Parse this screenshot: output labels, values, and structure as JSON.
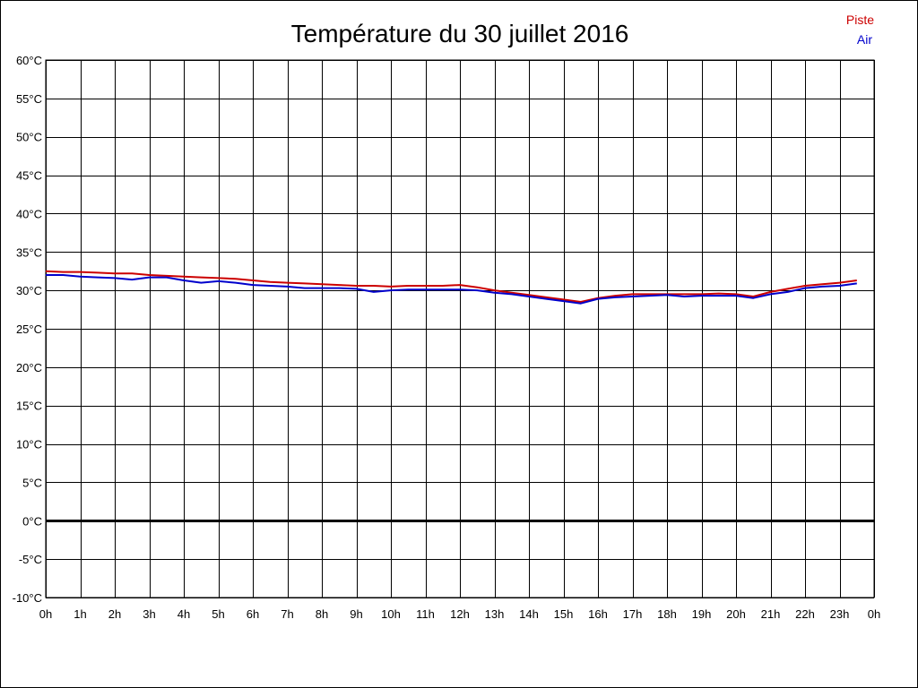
{
  "chart_data": {
    "type": "line",
    "title": "Température du 30 juillet 2016",
    "xlabel": "",
    "ylabel": "",
    "ylim": [
      -10,
      60
    ],
    "y_step": 5,
    "y_unit": "°C",
    "y_tick_labels": [
      "-10°C",
      "-5°C",
      "0°C",
      "5°C",
      "10°C",
      "15°C",
      "20°C",
      "25°C",
      "30°C",
      "35°C",
      "40°C",
      "45°C",
      "50°C",
      "55°C",
      "60°C"
    ],
    "x_tick_labels": [
      "0h",
      "1h",
      "2h",
      "3h",
      "4h",
      "5h",
      "6h",
      "7h",
      "8h",
      "9h",
      "10h",
      "11h",
      "12h",
      "13h",
      "14h",
      "15h",
      "16h",
      "17h",
      "18h",
      "19h",
      "20h",
      "21h",
      "22h",
      "23h",
      "0h"
    ],
    "xlim_hours": [
      0,
      24
    ],
    "grid": true,
    "zero_line": true,
    "legend_position": "top-right",
    "series": [
      {
        "name": "Piste",
        "color": "#cc0000",
        "x": [
          0,
          0.5,
          1,
          1.5,
          2,
          2.5,
          3,
          3.5,
          4,
          4.5,
          5,
          5.5,
          6,
          6.5,
          7,
          7.5,
          8,
          8.5,
          9,
          9.5,
          10,
          10.5,
          11,
          11.5,
          12,
          12.5,
          13,
          13.5,
          14,
          14.5,
          15,
          15.5,
          16,
          16.5,
          17,
          17.5,
          18,
          18.5,
          19,
          19.5,
          20,
          20.5,
          21,
          21.5,
          22,
          22.5,
          23,
          23.5
        ],
        "values": [
          32.5,
          32.4,
          32.4,
          32.3,
          32.2,
          32.2,
          32.0,
          31.9,
          31.8,
          31.7,
          31.6,
          31.5,
          31.3,
          31.1,
          31.0,
          30.9,
          30.8,
          30.7,
          30.6,
          30.6,
          30.5,
          30.6,
          30.6,
          30.6,
          30.7,
          30.4,
          30.0,
          29.7,
          29.4,
          29.1,
          28.8,
          28.5,
          29.0,
          29.3,
          29.5,
          29.5,
          29.5,
          29.5,
          29.5,
          29.6,
          29.5,
          29.2,
          29.8,
          30.2,
          30.6,
          30.8,
          31.0,
          31.3
        ]
      },
      {
        "name": "Air",
        "color": "#0000cc",
        "x": [
          0,
          0.5,
          1,
          1.5,
          2,
          2.5,
          3,
          3.5,
          4,
          4.5,
          5,
          5.5,
          6,
          6.5,
          7,
          7.5,
          8,
          8.5,
          9,
          9.5,
          10,
          10.5,
          11,
          11.5,
          12,
          12.5,
          13,
          13.5,
          14,
          14.5,
          15,
          15.5,
          16,
          16.5,
          17,
          17.5,
          18,
          18.5,
          19,
          19.5,
          20,
          20.5,
          21,
          21.5,
          22,
          22.5,
          23,
          23.5
        ],
        "values": [
          32.0,
          32.0,
          31.8,
          31.7,
          31.6,
          31.4,
          31.7,
          31.7,
          31.3,
          31.0,
          31.2,
          31.0,
          30.7,
          30.6,
          30.5,
          30.3,
          30.3,
          30.3,
          30.2,
          29.8,
          30.0,
          30.1,
          30.1,
          30.1,
          30.1,
          30.0,
          29.7,
          29.5,
          29.2,
          28.9,
          28.6,
          28.3,
          28.9,
          29.1,
          29.2,
          29.3,
          29.4,
          29.2,
          29.3,
          29.3,
          29.3,
          29.0,
          29.5,
          29.8,
          30.3,
          30.5,
          30.6,
          30.9
        ]
      }
    ]
  }
}
